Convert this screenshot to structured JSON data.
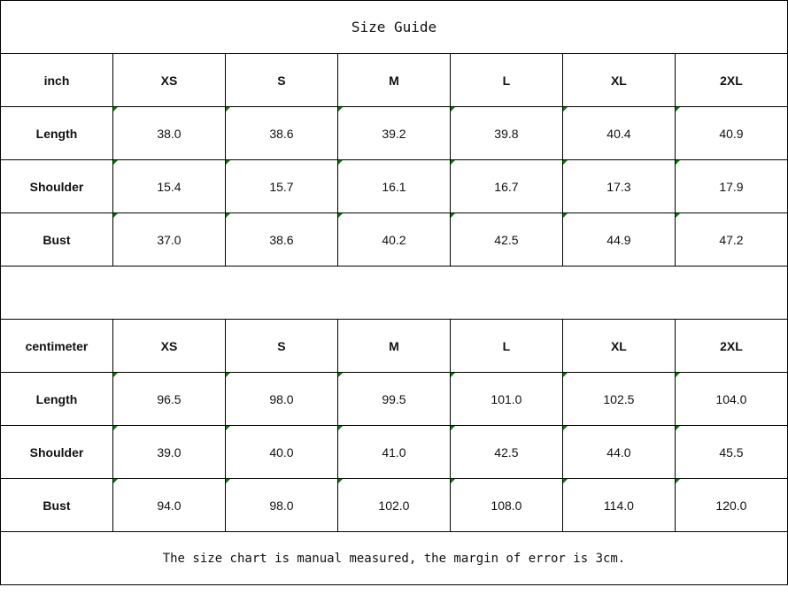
{
  "title": "Size Guide",
  "sizes": [
    "XS",
    "S",
    "M",
    "L",
    "XL",
    "2XL"
  ],
  "tables": [
    {
      "unit": "inch",
      "rows": [
        {
          "label": "Length",
          "values": [
            "38.0",
            "38.6",
            "39.2",
            "39.8",
            "40.4",
            "40.9"
          ]
        },
        {
          "label": "Shoulder",
          "values": [
            "15.4",
            "15.7",
            "16.1",
            "16.7",
            "17.3",
            "17.9"
          ]
        },
        {
          "label": "Bust",
          "values": [
            "37.0",
            "38.6",
            "40.2",
            "42.5",
            "44.9",
            "47.2"
          ]
        }
      ]
    },
    {
      "unit": "centimeter",
      "rows": [
        {
          "label": "Length",
          "values": [
            "96.5",
            "98.0",
            "99.5",
            "101.0",
            "102.5",
            "104.0"
          ]
        },
        {
          "label": "Shoulder",
          "values": [
            "39.0",
            "40.0",
            "41.0",
            "42.5",
            "44.0",
            "45.5"
          ]
        },
        {
          "label": "Bust",
          "values": [
            "94.0",
            "98.0",
            "102.0",
            "108.0",
            "114.0",
            "120.0"
          ]
        }
      ]
    }
  ],
  "note": "The size chart is manual measured, the margin of error is 3cm.",
  "colors": {
    "cell_marker": "#008000",
    "border": "#000000"
  }
}
